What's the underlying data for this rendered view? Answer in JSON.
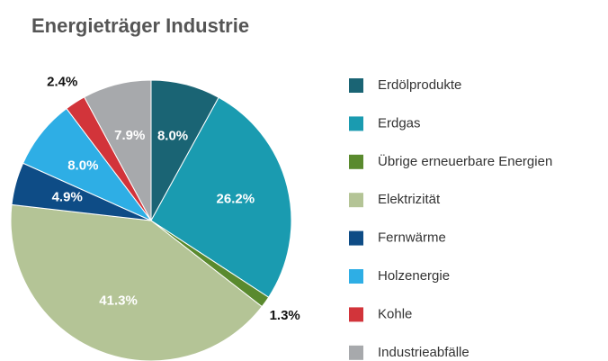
{
  "chart_data": {
    "type": "pie",
    "title": "Energieträger Industrie",
    "categories": [
      "Erdölprodukte",
      "Erdgas",
      "Übrige erneuerbare Energien",
      "Elektrizität",
      "Fernwärme",
      "Holzenergie",
      "Kohle",
      "Industrieabfälle"
    ],
    "values": [
      8.0,
      26.2,
      1.3,
      41.3,
      4.9,
      8.0,
      2.4,
      7.9
    ],
    "value_labels": [
      "8.0%",
      "26.2%",
      "1.3%",
      "41.3%",
      "4.9%",
      "8.0%",
      "2.4%",
      "7.9%"
    ],
    "colors": [
      "#1a6474",
      "#1a9bb0",
      "#5a8a2e",
      "#b4c496",
      "#0e4c86",
      "#2eaee5",
      "#d2343a",
      "#a7a9ac"
    ],
    "legend": "right"
  }
}
